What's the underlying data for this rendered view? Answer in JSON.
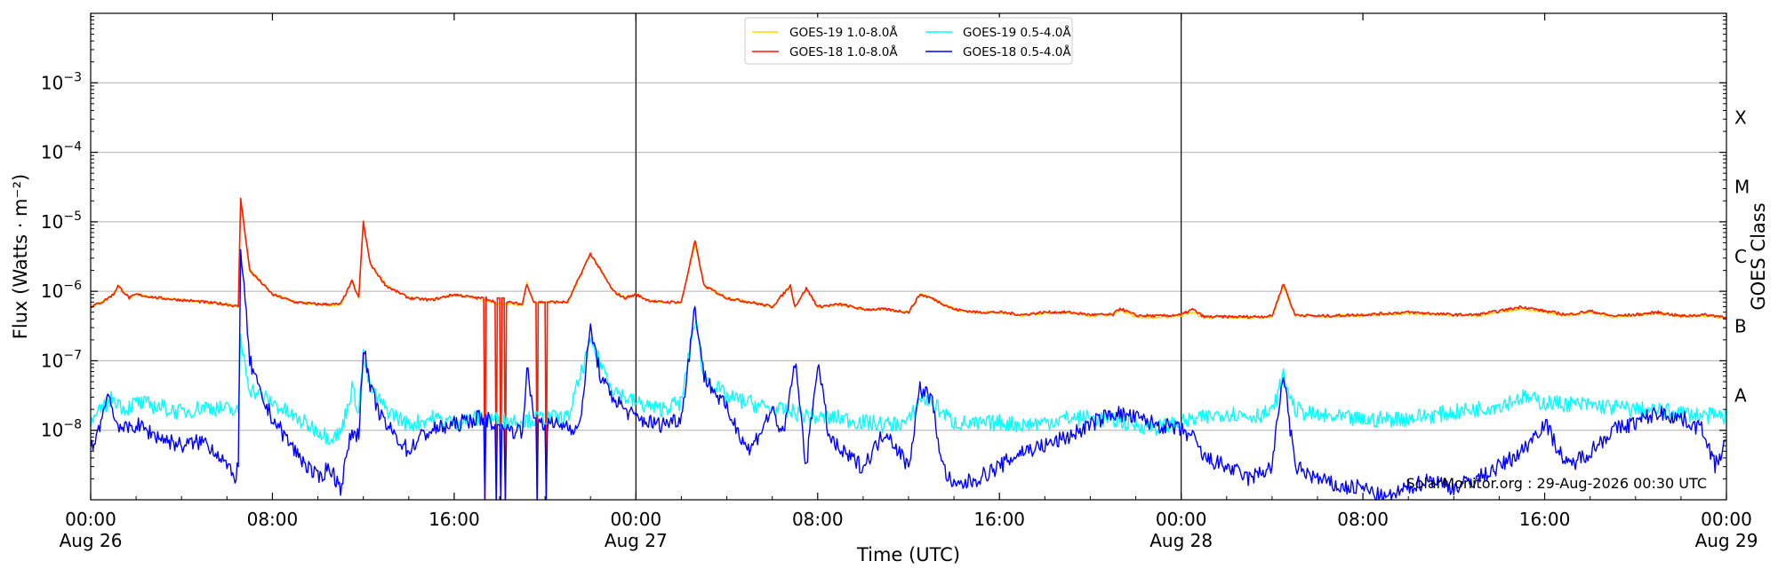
{
  "chart_data": {
    "type": "line",
    "title": "",
    "xlabel": "Time (UTC)",
    "ylabel": "Flux (Watts · m⁻²)",
    "y2label": "GOES Class",
    "yscale": "log",
    "xlim_hours": [
      0,
      72
    ],
    "ylim": [
      1e-09,
      0.01
    ],
    "grid": "horizontal",
    "legend_position": "top-center",
    "watermark": "SolarMonitor.org : 29-Aug-2026 00:30 UTC",
    "x_ticks": [
      {
        "hour": 0,
        "time": "00:00",
        "date": "Aug 26"
      },
      {
        "hour": 8,
        "time": "08:00",
        "date": ""
      },
      {
        "hour": 16,
        "time": "16:00",
        "date": ""
      },
      {
        "hour": 24,
        "time": "00:00",
        "date": "Aug 27"
      },
      {
        "hour": 32,
        "time": "08:00",
        "date": ""
      },
      {
        "hour": 40,
        "time": "16:00",
        "date": ""
      },
      {
        "hour": 48,
        "time": "00:00",
        "date": "Aug 28"
      },
      {
        "hour": 56,
        "time": "08:00",
        "date": ""
      },
      {
        "hour": 64,
        "time": "16:00",
        "date": ""
      },
      {
        "hour": 72,
        "time": "00:00",
        "date": "Aug 29"
      }
    ],
    "y_ticks": [
      {
        "exp": -8,
        "label": "10",
        "sup": "−8"
      },
      {
        "exp": -7,
        "label": "10",
        "sup": "−7"
      },
      {
        "exp": -6,
        "label": "10",
        "sup": "−6"
      },
      {
        "exp": -5,
        "label": "10",
        "sup": "−5"
      },
      {
        "exp": -4,
        "label": "10",
        "sup": "−4"
      },
      {
        "exp": -3,
        "label": "10",
        "sup": "−3"
      }
    ],
    "day_dividers_hours": [
      24,
      48
    ],
    "goes_classes": [
      {
        "label": "A",
        "exp": -7.5
      },
      {
        "label": "B",
        "exp": -6.5
      },
      {
        "label": "C",
        "exp": -5.5
      },
      {
        "label": "M",
        "exp": -4.5
      },
      {
        "label": "X",
        "exp": -3.5
      }
    ],
    "series": [
      {
        "name": "GOES-19 1.0-8.0Å",
        "color": "#ffd700",
        "x_hours": [
          0,
          0.5,
          1,
          1.2,
          1.7,
          2,
          3,
          4,
          5,
          6,
          6.5,
          6.6,
          7,
          8,
          9,
          10,
          11,
          11.5,
          11.8,
          12,
          12.3,
          13,
          14,
          15,
          16,
          17,
          18,
          19,
          19.2,
          19.5,
          20,
          21,
          22,
          23,
          23.5,
          24,
          24.5,
          25,
          26,
          26.6,
          27,
          28,
          29,
          30,
          30.8,
          31,
          31.5,
          32,
          33,
          34,
          35,
          36,
          36.5,
          37,
          38,
          39,
          40,
          41,
          42,
          43,
          44,
          45,
          45.3,
          46,
          47,
          48,
          48.5,
          49,
          50,
          51,
          52,
          52.5,
          53,
          54,
          56,
          58,
          60,
          61,
          62,
          63,
          64,
          65,
          66,
          67,
          68,
          69,
          70,
          71,
          72
        ],
        "values": [
          6e-07,
          7e-07,
          9e-07,
          1.2e-06,
          8e-07,
          9e-07,
          8e-07,
          7.5e-07,
          7e-07,
          6.5e-07,
          6e-07,
          2.1e-05,
          2e-06,
          9e-07,
          7e-07,
          6.5e-07,
          6.5e-07,
          1.4e-06,
          8e-07,
          1e-05,
          2.5e-06,
          1.2e-06,
          8e-07,
          7.5e-07,
          9e-07,
          8e-07,
          6.5e-07,
          6.5e-07,
          1.3e-06,
          7e-07,
          7e-07,
          7e-07,
          3.5e-06,
          1e-06,
          8e-07,
          9e-07,
          7.5e-07,
          7e-07,
          7e-07,
          5e-06,
          1.2e-06,
          8e-07,
          7e-07,
          6e-07,
          1.2e-06,
          6e-07,
          1.1e-06,
          6e-07,
          6.5e-07,
          5.5e-07,
          5.5e-07,
          5e-07,
          9e-07,
          8e-07,
          5.5e-07,
          5e-07,
          5e-07,
          4.5e-07,
          4.8e-07,
          5e-07,
          4.5e-07,
          4.5e-07,
          5.5e-07,
          4.3e-07,
          4.2e-07,
          4.5e-07,
          5e-07,
          4.2e-07,
          4.2e-07,
          4.2e-07,
          4.3e-07,
          1.2e-06,
          4.5e-07,
          4.3e-07,
          4.5e-07,
          4.8e-07,
          4.5e-07,
          4.5e-07,
          5e-07,
          5.5e-07,
          5e-07,
          4.5e-07,
          5e-07,
          4.3e-07,
          4.5e-07,
          4.8e-07,
          4.3e-07,
          4.5e-07,
          4.2e-07
        ]
      },
      {
        "name": "GOES-18 1.0-8.0Å",
        "color": "#ff1a00",
        "x_hours": [
          0,
          0.5,
          1,
          1.2,
          1.7,
          2,
          3,
          4,
          5,
          6,
          6.5,
          6.6,
          7,
          8,
          9,
          10,
          11,
          11.5,
          11.8,
          12,
          12.3,
          13,
          14,
          15,
          16,
          17,
          17.3,
          17.35,
          17.4,
          17.8,
          17.85,
          17.9,
          18,
          18.05,
          18.1,
          18.2,
          18.25,
          18.3,
          19,
          19.2,
          19.5,
          19.6,
          19.65,
          19.7,
          20,
          20.05,
          20.1,
          21,
          22,
          23,
          23.5,
          24,
          24.5,
          25,
          26,
          26.6,
          27,
          28,
          29,
          30,
          30.8,
          31,
          31.5,
          32,
          33,
          34,
          35,
          36,
          36.5,
          37,
          38,
          39,
          40,
          41,
          42,
          43,
          44,
          45,
          45.3,
          46,
          47,
          48,
          48.5,
          49,
          50,
          51,
          52,
          52.5,
          53,
          54,
          56,
          58,
          60,
          61,
          62,
          63,
          64,
          65,
          66,
          67,
          68,
          69,
          70,
          71,
          72
        ],
        "values": [
          6e-07,
          7e-07,
          9e-07,
          1.2e-06,
          8e-07,
          9e-07,
          8e-07,
          7.5e-07,
          7e-07,
          6.5e-07,
          6e-07,
          2.2e-05,
          2e-06,
          9e-07,
          7e-07,
          6.5e-07,
          6.5e-07,
          1.4e-06,
          8e-07,
          1e-05,
          2.5e-06,
          1.2e-06,
          8e-07,
          7.5e-07,
          9e-07,
          8e-07,
          8e-07,
          1e-09,
          8e-07,
          7e-07,
          1e-09,
          8e-07,
          8e-07,
          1e-09,
          8e-07,
          8e-07,
          1e-09,
          7e-07,
          6.5e-07,
          1.3e-06,
          7e-07,
          7e-07,
          1e-09,
          7e-07,
          7e-07,
          1e-09,
          7e-07,
          7e-07,
          3.5e-06,
          1e-06,
          8e-07,
          9e-07,
          7.5e-07,
          7e-07,
          7e-07,
          5.3e-06,
          1.2e-06,
          8e-07,
          7e-07,
          6e-07,
          1.2e-06,
          6e-07,
          1.1e-06,
          6e-07,
          6.5e-07,
          5.5e-07,
          5.5e-07,
          5e-07,
          9e-07,
          8e-07,
          5.5e-07,
          5e-07,
          5e-07,
          4.6e-07,
          5e-07,
          5e-07,
          4.6e-07,
          4.6e-07,
          5.7e-07,
          4.5e-07,
          4.4e-07,
          4.6e-07,
          5.5e-07,
          4.3e-07,
          4.3e-07,
          4.3e-07,
          4.4e-07,
          1.3e-06,
          4.6e-07,
          4.4e-07,
          4.6e-07,
          5e-07,
          4.6e-07,
          4.6e-07,
          5.2e-07,
          6e-07,
          5.2e-07,
          4.6e-07,
          5.2e-07,
          4.4e-07,
          4.6e-07,
          5e-07,
          4.4e-07,
          4.6e-07,
          4.3e-07
        ]
      },
      {
        "name": "GOES-19 0.5-4.0Å",
        "color": "#00ffff",
        "x_hours": [
          0,
          0.5,
          1,
          1.5,
          2,
          3,
          4,
          5,
          6,
          6.5,
          6.6,
          7,
          8,
          9,
          10,
          10.5,
          11,
          11.5,
          11.8,
          12,
          12.3,
          13,
          14,
          15,
          16,
          17,
          18,
          19,
          20,
          21,
          22,
          23,
          23.5,
          24,
          25,
          26,
          26.6,
          27,
          28,
          29,
          30,
          31,
          32,
          33,
          34,
          35,
          36,
          36.5,
          37,
          38,
          39,
          40,
          41,
          42,
          43,
          44,
          45,
          46,
          47,
          48,
          49,
          50,
          51,
          52,
          52.5,
          53,
          54,
          56,
          58,
          60,
          62,
          63,
          64,
          66,
          68,
          70,
          71,
          72
        ],
        "values": [
          1.2e-08,
          2e-08,
          3e-08,
          2e-08,
          2.5e-08,
          2.2e-08,
          1.8e-08,
          2.2e-08,
          2e-08,
          1.8e-08,
          2e-07,
          4e-08,
          2.5e-08,
          1.5e-08,
          1e-08,
          8e-09,
          9e-09,
          4e-08,
          2e-08,
          1.2e-07,
          4e-08,
          2e-08,
          1.2e-08,
          1.5e-08,
          1.3e-08,
          1.5e-08,
          1.4e-08,
          1.4e-08,
          1.5e-08,
          1.5e-08,
          1.8e-07,
          4e-08,
          3e-08,
          2.5e-08,
          2e-08,
          2.5e-08,
          4e-07,
          6e-08,
          3e-08,
          2.5e-08,
          2e-08,
          1.8e-08,
          1.5e-08,
          1.5e-08,
          1.3e-08,
          1.2e-08,
          1.3e-08,
          3e-08,
          2.5e-08,
          1.3e-08,
          1.2e-08,
          1.3e-08,
          1.2e-08,
          1.3e-08,
          1.5e-08,
          1.5e-08,
          1.4e-08,
          1.2e-08,
          1.1e-08,
          1.3e-08,
          1.5e-08,
          1.8e-08,
          1.6e-08,
          1.8e-08,
          6e-08,
          2e-08,
          1.6e-08,
          1.4e-08,
          1.5e-08,
          1.8e-08,
          2.3e-08,
          3e-08,
          2.5e-08,
          2.3e-08,
          2e-08,
          1.8e-08,
          1.6e-08,
          1.6e-08
        ]
      },
      {
        "name": "GOES-18 0.5-4.0Å",
        "color": "#0000ff",
        "x_hours": [
          0,
          0.5,
          0.8,
          1,
          1.5,
          2,
          3,
          4,
          5,
          5.8,
          6,
          6.3,
          6.5,
          6.6,
          7,
          7.5,
          8,
          9,
          10,
          10.5,
          11,
          11.5,
          11.8,
          12,
          12.3,
          12.8,
          13,
          14,
          14.5,
          15,
          16,
          17,
          17.3,
          17.35,
          17.4,
          17.8,
          17.85,
          17.9,
          18,
          18.05,
          18.1,
          18.2,
          18.25,
          18.3,
          19,
          19.2,
          19.5,
          19.6,
          19.65,
          19.7,
          20,
          20.05,
          20.1,
          21,
          21.5,
          22,
          22.5,
          23,
          23.5,
          24,
          25,
          26,
          26.6,
          27,
          28,
          29,
          30,
          30.5,
          31,
          31.5,
          32,
          32.5,
          33,
          34,
          35,
          36,
          36.5,
          37,
          37.5,
          38,
          39,
          40,
          41,
          42,
          43,
          44,
          45,
          46,
          47,
          48,
          48.5,
          49,
          50,
          51,
          52,
          52.5,
          53,
          54,
          55,
          56,
          57,
          58,
          59,
          60,
          61,
          62,
          63,
          64,
          65,
          66,
          67,
          68,
          69,
          70,
          71,
          71.5,
          72
        ],
        "values": [
          5e-09,
          1.5e-08,
          4e-08,
          1.5e-08,
          1e-08,
          1.2e-08,
          8e-09,
          6e-09,
          7e-09,
          4e-09,
          3e-09,
          2e-09,
          3e-09,
          4.5e-06,
          1e-07,
          3e-08,
          1.5e-08,
          5e-09,
          2e-09,
          3e-09,
          1.5e-09,
          1e-08,
          8e-09,
          1.7e-07,
          4e-08,
          1.5e-08,
          1.2e-08,
          5e-09,
          8e-09,
          1e-08,
          1.2e-08,
          1.5e-08,
          1.5e-08,
          1e-09,
          1.5e-08,
          1.2e-08,
          1e-09,
          1.2e-08,
          1.2e-08,
          1e-09,
          1.2e-08,
          1e-08,
          1e-09,
          1e-08,
          1e-08,
          8e-08,
          1.5e-08,
          1.5e-08,
          1e-09,
          1.5e-08,
          1.2e-08,
          1e-09,
          1.2e-08,
          1.2e-08,
          1e-08,
          3e-07,
          5e-08,
          3e-08,
          2e-08,
          1.5e-08,
          1.2e-08,
          1.5e-08,
          6e-07,
          6e-08,
          2e-08,
          5e-09,
          2e-08,
          8e-09,
          1e-07,
          3e-09,
          1e-07,
          8e-09,
          5e-09,
          3e-09,
          1e-08,
          3e-09,
          4e-08,
          3e-08,
          3e-09,
          1.5e-09,
          2e-09,
          3e-09,
          5e-09,
          6e-09,
          8e-09,
          1.2e-08,
          1.8e-08,
          1.5e-08,
          1.2e-08,
          1e-08,
          8e-09,
          4e-09,
          3e-09,
          2e-09,
          3e-09,
          7e-08,
          3e-09,
          2e-09,
          1.5e-09,
          1.5e-09,
          1e-09,
          1.5e-09,
          2e-09,
          1.5e-09,
          2e-09,
          3e-09,
          5e-09,
          1.3e-08,
          3e-09,
          5e-09,
          1e-08,
          1.3e-08,
          1.8e-08,
          1.5e-08,
          1e-08,
          3e-09,
          7e-09
        ]
      }
    ]
  }
}
